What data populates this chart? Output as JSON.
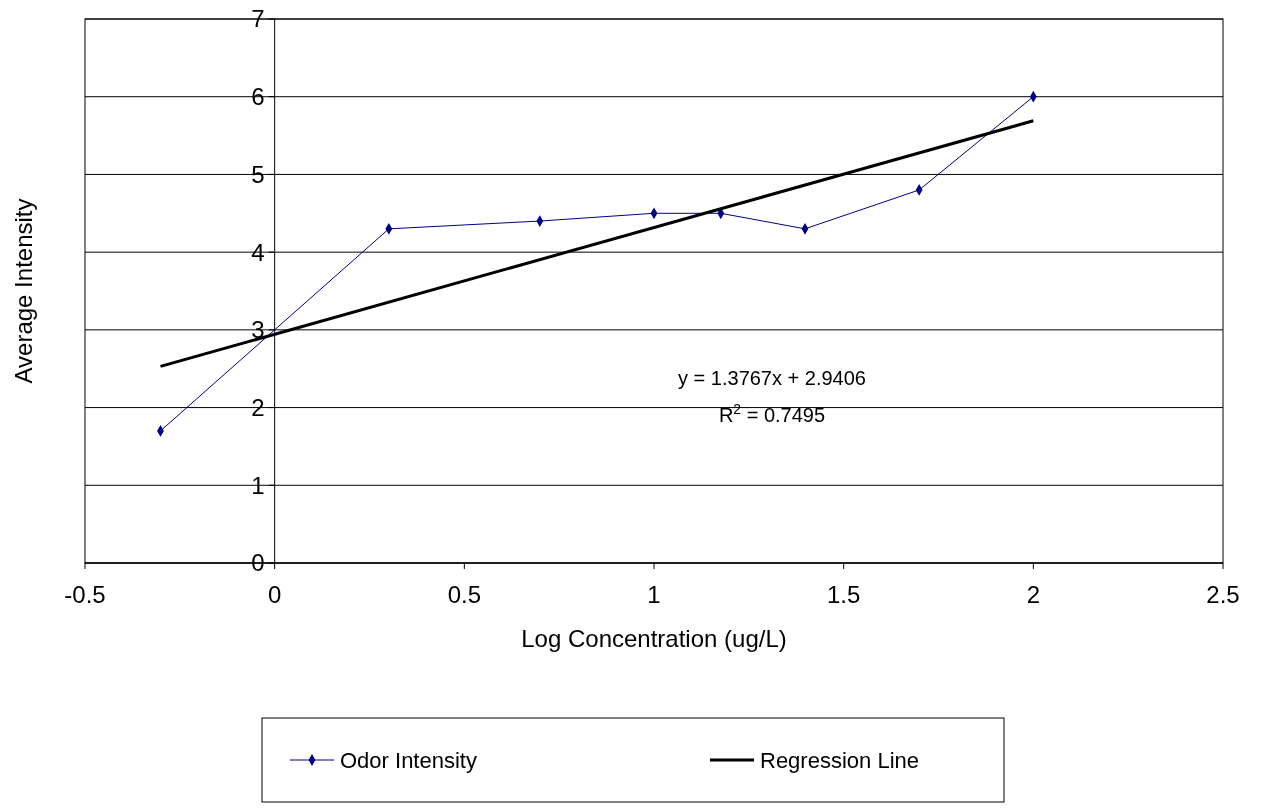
{
  "chart_data": {
    "type": "line",
    "xlabel": "Log Concentration (ug/L)",
    "ylabel": "Average Intensity",
    "x": [
      -0.301,
      0.301,
      0.699,
      1,
      1.176,
      1.398,
      1.699,
      2
    ],
    "series": [
      {
        "name": "Odor Intensity",
        "color": "#000080",
        "values": [
          1.7,
          4.3,
          4.4,
          4.5,
          4.5,
          4.3,
          4.8,
          6.0
        ],
        "marker": "diamond"
      },
      {
        "name": "Regression Line",
        "color": "#000000",
        "type": "line",
        "x": [
          -0.301,
          2
        ],
        "values": [
          2.53,
          5.69
        ],
        "marker": "none"
      }
    ],
    "xlim": [
      -0.5,
      2.5
    ],
    "xticks": [
      -0.5,
      0,
      0.5,
      1,
      1.5,
      2,
      2.5
    ],
    "ylim": [
      0,
      7
    ],
    "yticks": [
      0,
      1,
      2,
      3,
      4,
      5,
      6,
      7
    ],
    "grid": "y",
    "legend": "bottom",
    "annotations": [
      "y = 1.3767x + 2.9406",
      "R$^{2}$ = 0.7495"
    ]
  }
}
